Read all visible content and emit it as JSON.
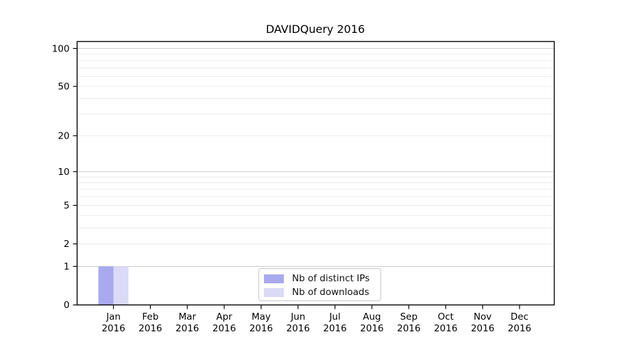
{
  "figure": {
    "background": "#ffffff"
  },
  "chart_data": {
    "type": "bar",
    "title": "DAVIDQuery 2016",
    "categories": [
      "Jan 2016",
      "Feb 2016",
      "Mar 2016",
      "Apr 2016",
      "May 2016",
      "Jun 2016",
      "Jul 2016",
      "Aug 2016",
      "Sep 2016",
      "Oct 2016",
      "Nov 2016",
      "Dec 2016"
    ],
    "series": [
      {
        "name": "Nb of distinct IPs",
        "color": "#a9a9ef",
        "values": [
          1,
          0,
          0,
          0,
          0,
          0,
          0,
          0,
          0,
          0,
          0,
          0
        ]
      },
      {
        "name": "Nb of downloads",
        "color": "#dbdbf7",
        "values": [
          1,
          0,
          0,
          0,
          0,
          0,
          0,
          0,
          0,
          0,
          0,
          0
        ]
      }
    ],
    "xlabel": "",
    "ylabel": "",
    "yscale": "log1p",
    "yticks": [
      0,
      1,
      2,
      5,
      10,
      20,
      50,
      100
    ],
    "minor_yticks": [
      2,
      3,
      4,
      5,
      6,
      7,
      8,
      9,
      20,
      30,
      40,
      50,
      60,
      70,
      80,
      90
    ],
    "ylim": [
      0,
      114
    ],
    "grid": true,
    "legend_position": "lower center",
    "colors": {
      "axis": "#000000",
      "text": "#000000",
      "grid_minor": "#ececec",
      "grid_major": "#c9c9c9",
      "legend_border": "#c6c6c6"
    }
  }
}
